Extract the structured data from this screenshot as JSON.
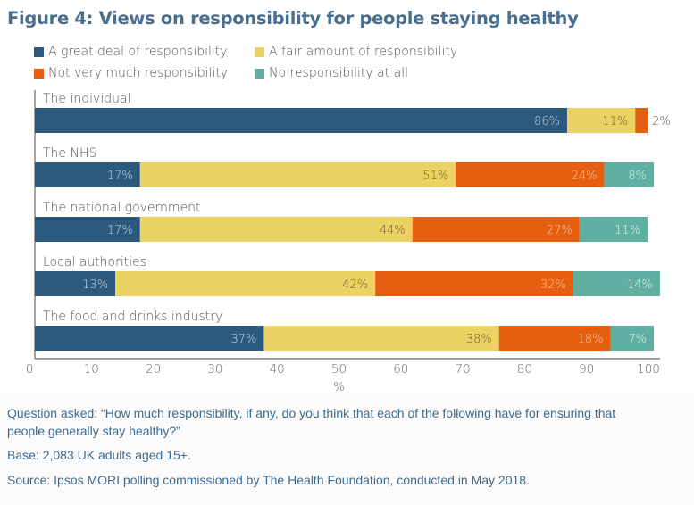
{
  "title": "Figure 4: Views on responsibility for people staying healthy",
  "colors": {
    "great_deal": "#2b5a7e",
    "fair_amount": "#ecd263",
    "not_very_much": "#e65f10",
    "none": "#5fb0a2",
    "title": "#4a6e8e",
    "footer_text": "#3d6a90"
  },
  "legend": [
    {
      "label": "A great deal of responsibility",
      "color": "#2b5a7e"
    },
    {
      "label": "A fair amount of responsibility",
      "color": "#ecd263"
    },
    {
      "label": "Not very much responsibility",
      "color": "#e65f10"
    },
    {
      "label": "No responsibility at all",
      "color": "#5fb0a2"
    }
  ],
  "chart_data": {
    "type": "bar",
    "orientation": "horizontal",
    "stacked": true,
    "title": "Figure 4: Views on responsibility for people staying healthy",
    "categories": [
      "The individual",
      "The NHS",
      "The national government",
      "Local authorities",
      "The food and drinks industry"
    ],
    "series": [
      {
        "name": "A great deal of responsibility",
        "color": "#2b5a7e",
        "values": [
          86,
          17,
          17,
          13,
          37
        ]
      },
      {
        "name": "A fair amount of responsibility",
        "color": "#ecd263",
        "values": [
          11,
          51,
          44,
          42,
          38
        ]
      },
      {
        "name": "Not very much responsibility",
        "color": "#e65f10",
        "values": [
          2,
          24,
          27,
          32,
          18
        ]
      },
      {
        "name": "No responsibility at all",
        "color": "#5fb0a2",
        "values": [
          0,
          8,
          11,
          14,
          7
        ]
      }
    ],
    "data_labels": [
      [
        "86%",
        "11%",
        "2%",
        null
      ],
      [
        "17%",
        "51%",
        "24%",
        "8%"
      ],
      [
        "17%",
        "44%",
        "27%",
        "11%"
      ],
      [
        "13%",
        "42%",
        "32%",
        "14%"
      ],
      [
        "37%",
        "38%",
        "18%",
        "7%"
      ]
    ],
    "xlabel": "%",
    "ylabel": "",
    "xlim": [
      0,
      100
    ],
    "xticks": [
      0,
      10,
      20,
      30,
      40,
      50,
      60,
      70,
      80,
      90,
      100
    ],
    "grid": false,
    "legend_position": "top"
  },
  "footer": {
    "question_line1": "Question asked: “How much responsibility, if any, do you think that each of the following have for ensuring that",
    "question_line2": "people generally stay healthy?”",
    "base": "Base: 2,083 UK adults aged 15+.",
    "source": "Source: Ipsos MORI polling commissioned by The Health Foundation, conducted in May 2018."
  }
}
